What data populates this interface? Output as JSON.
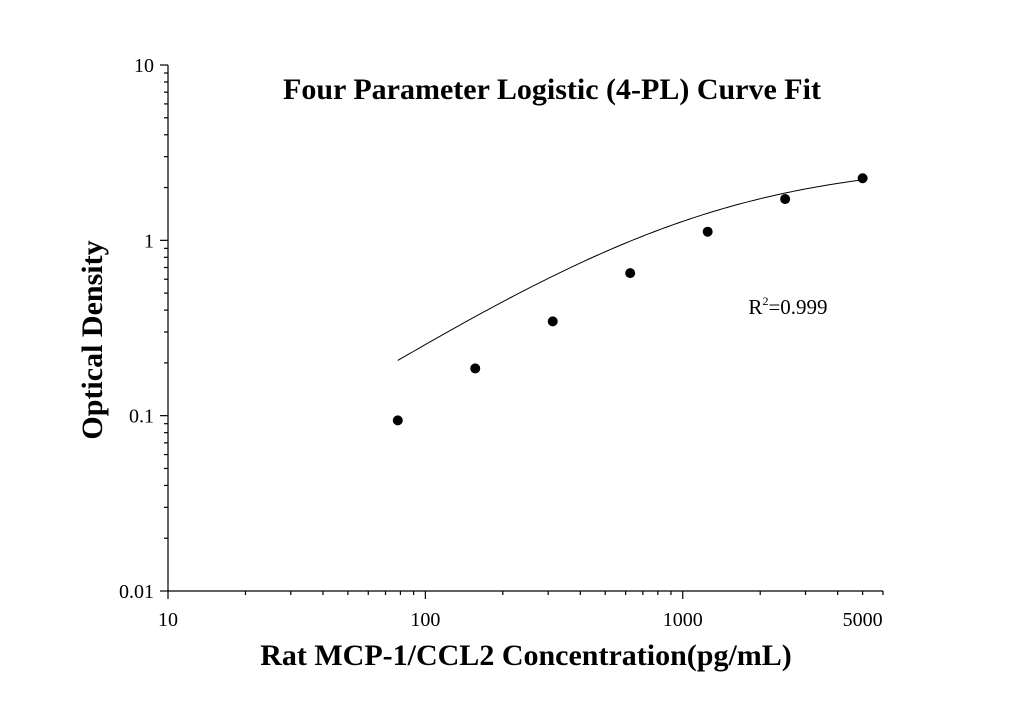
{
  "chart_data": {
    "type": "scatter",
    "title": "Four Parameter Logistic (4-PL) Curve Fit",
    "xlabel": "Rat MCP-1/CCL2 Concentration(pg/mL)",
    "ylabel": "Optical Density",
    "xscale": "log",
    "yscale": "log",
    "xlim": [
      10,
      6000
    ],
    "ylim": [
      0.01,
      10
    ],
    "xticks": [
      {
        "value": 10,
        "label": "10"
      },
      {
        "value": 100,
        "label": "100"
      },
      {
        "value": 1000,
        "label": "1000"
      },
      {
        "value": 5000,
        "label": "5000"
      }
    ],
    "yticks": [
      {
        "value": 0.01,
        "label": "0.01"
      },
      {
        "value": 0.1,
        "label": "0.1"
      },
      {
        "value": 1,
        "label": "1"
      },
      {
        "value": 10,
        "label": "10"
      }
    ],
    "series": [
      {
        "x": [
          78.13,
          156.25,
          312.5,
          625,
          1250,
          2500,
          5000
        ],
        "y": [
          0.094,
          0.186,
          0.345,
          0.65,
          1.12,
          1.72,
          2.26
        ]
      }
    ],
    "fit": {
      "type": "4PL",
      "a": 0.002,
      "d": 2.8,
      "c": 1200,
      "b": 0.93
    },
    "annotation": {
      "base": "R",
      "sup": "2",
      "rest": "=0.999",
      "x": 1800,
      "y": 0.38
    },
    "grid": false,
    "legend": "none"
  }
}
